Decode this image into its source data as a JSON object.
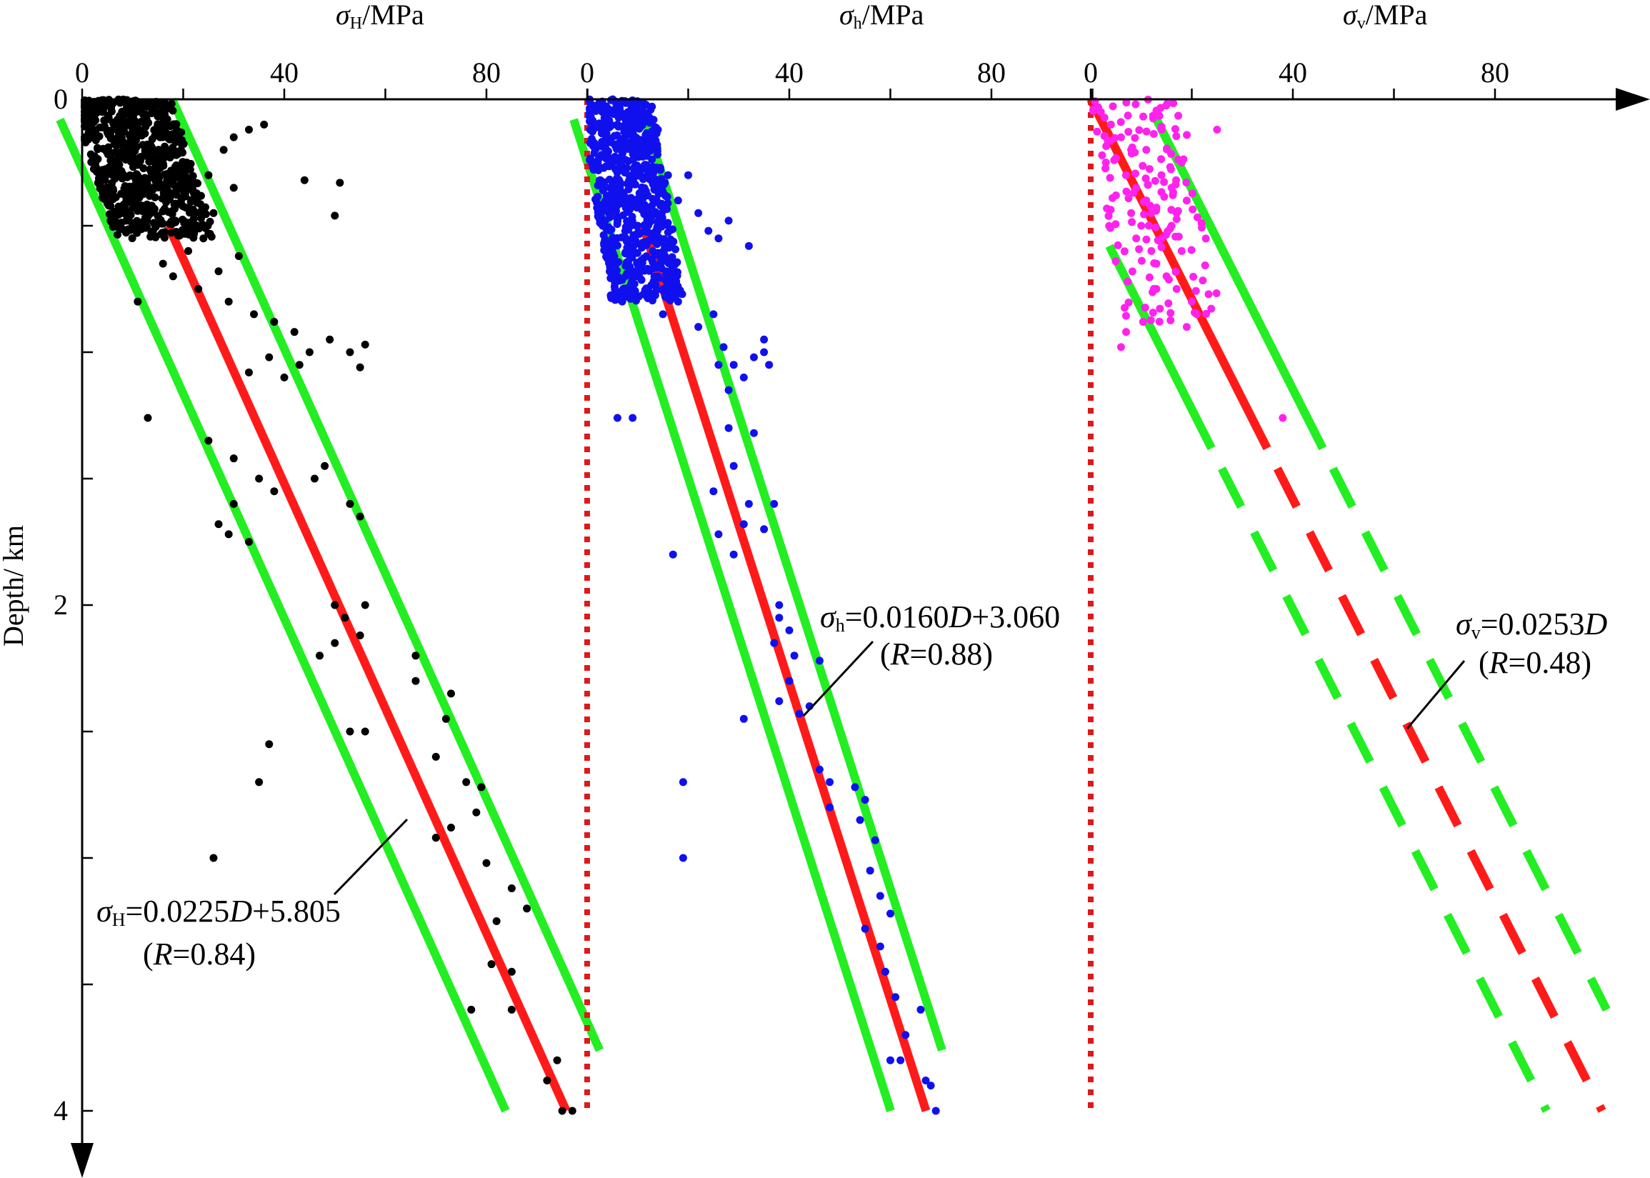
{
  "colors": {
    "axis": "#000000",
    "fit_line": "#ff1a1a",
    "bounds": "#22ee22",
    "zero_ref": "#e01818",
    "sigma_H_points": "#000000",
    "sigma_h_points": "#1010ee",
    "sigma_v_points": "#ff22ee"
  },
  "y_axis": {
    "title": "Depth/ km",
    "ticks": [
      "0",
      "2",
      "4"
    ],
    "range": [
      0,
      4
    ]
  },
  "chart_data": [
    {
      "type": "scatter",
      "title_symbol": "σ",
      "title_subscript": "H",
      "title_unit": "/MPa",
      "x_tick_labels": [
        "0",
        "40",
        "80"
      ],
      "xlim": [
        0,
        100
      ],
      "ylim": [
        4,
        0
      ],
      "xlabel": "σH/MPa",
      "ylabel": "Depth/ km",
      "equation": {
        "symbol": "σ",
        "subscript": "H",
        "text_a": "=0.0225",
        "var": "D",
        "text_b": "+5.805",
        "r_prefix": "(",
        "r_var": "R",
        "r_text": "=0.84)"
      },
      "fit": {
        "slope_mpa_per_m": 0.0225,
        "intercept_mpa": 5.805,
        "depth_range_km": [
          0.5,
          4.0
        ],
        "r": 0.84
      },
      "bounds": {
        "upper_offset_mpa": 12,
        "lower_offset_mpa": -12,
        "depth_range_km": [
          0.0,
          4.0
        ],
        "style": "solid"
      },
      "points_summary": {
        "dense_cluster": {
          "x_range": [
            0,
            22
          ],
          "depth_range_km": [
            0,
            0.55
          ]
        }
      },
      "points": [
        [
          4,
          0.05
        ],
        [
          7,
          0.08
        ],
        [
          10,
          0.12
        ],
        [
          12,
          0.18
        ],
        [
          9,
          0.22
        ],
        [
          15,
          0.1
        ],
        [
          18,
          0.15
        ],
        [
          6,
          0.3
        ],
        [
          14,
          0.35
        ],
        [
          20,
          0.25
        ],
        [
          22,
          0.4
        ],
        [
          25,
          0.3
        ],
        [
          28,
          0.2
        ],
        [
          30,
          0.15
        ],
        [
          33,
          0.12
        ],
        [
          36,
          0.1
        ],
        [
          30,
          0.35
        ],
        [
          26,
          0.45
        ],
        [
          24,
          0.55
        ],
        [
          21,
          0.6
        ],
        [
          18,
          0.7
        ],
        [
          16,
          0.65
        ],
        [
          23,
          0.75
        ],
        [
          27,
          0.68
        ],
        [
          31,
          0.62
        ],
        [
          44,
          0.32
        ],
        [
          51,
          0.33
        ],
        [
          50,
          0.46
        ],
        [
          29,
          0.8
        ],
        [
          34,
          0.85
        ],
        [
          38,
          0.88
        ],
        [
          42,
          0.92
        ],
        [
          45,
          1.0
        ],
        [
          49,
          0.95
        ],
        [
          53,
          1.0
        ],
        [
          56,
          0.97
        ],
        [
          55,
          1.06
        ],
        [
          43,
          1.05
        ],
        [
          40,
          1.1
        ],
        [
          37,
          1.02
        ],
        [
          33,
          1.08
        ],
        [
          11,
          0.8
        ],
        [
          13,
          1.26
        ],
        [
          25,
          1.35
        ],
        [
          30,
          1.42
        ],
        [
          35,
          1.5
        ],
        [
          38,
          1.55
        ],
        [
          46,
          1.5
        ],
        [
          53,
          1.6
        ],
        [
          55,
          1.65
        ],
        [
          30,
          1.6
        ],
        [
          27,
          1.68
        ],
        [
          29,
          1.72
        ],
        [
          33,
          1.75
        ],
        [
          48,
          1.45
        ],
        [
          50,
          2.0
        ],
        [
          52,
          2.05
        ],
        [
          56,
          2.0
        ],
        [
          55,
          2.12
        ],
        [
          50,
          2.15
        ],
        [
          47,
          2.2
        ],
        [
          66,
          2.2
        ],
        [
          66,
          2.3
        ],
        [
          72,
          2.45
        ],
        [
          73,
          2.35
        ],
        [
          53,
          2.5
        ],
        [
          56,
          2.5
        ],
        [
          37,
          2.55
        ],
        [
          35,
          2.7
        ],
        [
          26,
          3.0
        ],
        [
          70,
          2.6
        ],
        [
          76,
          2.7
        ],
        [
          79,
          2.72
        ],
        [
          78,
          2.82
        ],
        [
          73,
          2.88
        ],
        [
          70,
          2.92
        ],
        [
          80,
          3.02
        ],
        [
          85,
          3.12
        ],
        [
          82,
          3.25
        ],
        [
          88,
          3.2
        ],
        [
          81,
          3.42
        ],
        [
          85,
          3.45
        ],
        [
          77,
          3.6
        ],
        [
          85,
          3.6
        ],
        [
          94,
          3.8
        ],
        [
          92,
          3.88
        ],
        [
          97,
          4.0
        ],
        [
          95,
          4.0
        ]
      ]
    },
    {
      "type": "scatter",
      "title_symbol": "σ",
      "title_subscript": "h",
      "title_unit": "/MPa",
      "x_tick_labels": [
        "0",
        "40",
        "80"
      ],
      "xlim": [
        0,
        100
      ],
      "ylim": [
        4,
        0
      ],
      "xlabel": "σh/MPa",
      "equation": {
        "symbol": "σ",
        "subscript": "h",
        "text_a": "=0.0160",
        "var": "D",
        "text_b": "+3.060",
        "r_prefix": "(",
        "r_var": "R",
        "r_text": "=0.88)"
      },
      "fit": {
        "slope_mpa_per_m": 0.016,
        "intercept_mpa": 3.06,
        "depth_range_km": [
          0.5,
          4.0
        ],
        "r": 0.88
      },
      "bounds": {
        "upper_offset_mpa": 7,
        "lower_offset_mpa": -7,
        "depth_range_km": [
          0.0,
          4.0
        ],
        "style": "solid"
      },
      "points_summary": {
        "dense_cluster": {
          "x_range": [
            0,
            16
          ],
          "depth_range_km": [
            0,
            0.8
          ]
        }
      },
      "points": [
        [
          3,
          0.05
        ],
        [
          6,
          0.1
        ],
        [
          9,
          0.15
        ],
        [
          12,
          0.2
        ],
        [
          14,
          0.12
        ],
        [
          16,
          0.3
        ],
        [
          5,
          0.4
        ],
        [
          10,
          0.5
        ],
        [
          13,
          0.6
        ],
        [
          18,
          0.4
        ],
        [
          20,
          0.3
        ],
        [
          22,
          0.45
        ],
        [
          24,
          0.52
        ],
        [
          26,
          0.55
        ],
        [
          28,
          0.48
        ],
        [
          32,
          0.58
        ],
        [
          35,
          0.95
        ],
        [
          33,
          1.02
        ],
        [
          31,
          1.1
        ],
        [
          29,
          1.05
        ],
        [
          27,
          0.98
        ],
        [
          25,
          0.85
        ],
        [
          22,
          0.9
        ],
        [
          18,
          0.8
        ],
        [
          15,
          0.85
        ],
        [
          26,
          1.05
        ],
        [
          28,
          1.15
        ],
        [
          35,
          1.0
        ],
        [
          36,
          1.05
        ],
        [
          6,
          1.26
        ],
        [
          9,
          1.26
        ],
        [
          28,
          1.3
        ],
        [
          33,
          1.32
        ],
        [
          29,
          1.45
        ],
        [
          25,
          1.55
        ],
        [
          32,
          1.6
        ],
        [
          31,
          1.68
        ],
        [
          37,
          1.6
        ],
        [
          35,
          1.7
        ],
        [
          26,
          1.72
        ],
        [
          29,
          1.8
        ],
        [
          17,
          1.8
        ],
        [
          38,
          2.0
        ],
        [
          38,
          2.05
        ],
        [
          40,
          2.1
        ],
        [
          37,
          2.15
        ],
        [
          41,
          2.2
        ],
        [
          46,
          2.22
        ],
        [
          40,
          2.3
        ],
        [
          38,
          2.38
        ],
        [
          44,
          2.4
        ],
        [
          42,
          2.43
        ],
        [
          31,
          2.45
        ],
        [
          19,
          2.7
        ],
        [
          46,
          2.65
        ],
        [
          48,
          2.7
        ],
        [
          48,
          2.8
        ],
        [
          53,
          2.72
        ],
        [
          55,
          2.77
        ],
        [
          54,
          2.85
        ],
        [
          57,
          2.93
        ],
        [
          19,
          3.0
        ],
        [
          56,
          3.05
        ],
        [
          58,
          3.15
        ],
        [
          60,
          3.22
        ],
        [
          55,
          3.28
        ],
        [
          58,
          3.35
        ],
        [
          59,
          3.45
        ],
        [
          61,
          3.55
        ],
        [
          66,
          3.6
        ],
        [
          63,
          3.7
        ],
        [
          60,
          3.8
        ],
        [
          62,
          3.8
        ],
        [
          67,
          3.88
        ],
        [
          68,
          3.9
        ],
        [
          69,
          4.0
        ]
      ]
    },
    {
      "type": "scatter",
      "title_symbol": "σ",
      "title_subscript": "v",
      "title_unit": "/MPa",
      "x_tick_labels": [
        "0",
        "40",
        "80"
      ],
      "xlim": [
        0,
        100
      ],
      "ylim": [
        4,
        0
      ],
      "xlabel": "σv/MPa",
      "equation": {
        "symbol": "σ",
        "subscript": "v",
        "text_a": "=0.0253",
        "var": "D",
        "text_b": "",
        "r_prefix": "(",
        "r_var": "R",
        "r_text": "=0.48)"
      },
      "fit": {
        "slope_mpa_per_m": 0.0253,
        "intercept_mpa": 0,
        "solid_depth_km": [
          0,
          1.38
        ],
        "dashed_depth_km": [
          1.38,
          4.0
        ],
        "r": 0.48
      },
      "bounds": {
        "upper_offset_mpa": 11,
        "lower_offset_mpa": -11,
        "solid_depth_km": [
          0,
          1.38
        ],
        "dashed_depth_km": [
          1.38,
          4.0
        ]
      },
      "points_summary": {
        "cluster": {
          "x_range": [
            1,
            22
          ],
          "depth_range_km": [
            0,
            0.9
          ]
        }
      },
      "points": [
        [
          2,
          0.05
        ],
        [
          4,
          0.1
        ],
        [
          6,
          0.15
        ],
        [
          8,
          0.2
        ],
        [
          3,
          0.25
        ],
        [
          7,
          0.3
        ],
        [
          9,
          0.35
        ],
        [
          11,
          0.4
        ],
        [
          12,
          0.45
        ],
        [
          5,
          0.38
        ],
        [
          8,
          0.45
        ],
        [
          10,
          0.5
        ],
        [
          14,
          0.55
        ],
        [
          16,
          0.5
        ],
        [
          18,
          0.6
        ],
        [
          13,
          0.65
        ],
        [
          15,
          0.7
        ],
        [
          17,
          0.75
        ],
        [
          20,
          0.8
        ],
        [
          21,
          0.85
        ],
        [
          19,
          0.9
        ],
        [
          7,
          0.92
        ],
        [
          6,
          0.98
        ],
        [
          11,
          0.2
        ],
        [
          14,
          0.3
        ],
        [
          16,
          0.35
        ],
        [
          17,
          0.45
        ],
        [
          25,
          0.12
        ],
        [
          18,
          0.25
        ],
        [
          12,
          0.6
        ],
        [
          38,
          1.26
        ],
        [
          9,
          0.55
        ],
        [
          13,
          0.75
        ]
      ]
    }
  ]
}
